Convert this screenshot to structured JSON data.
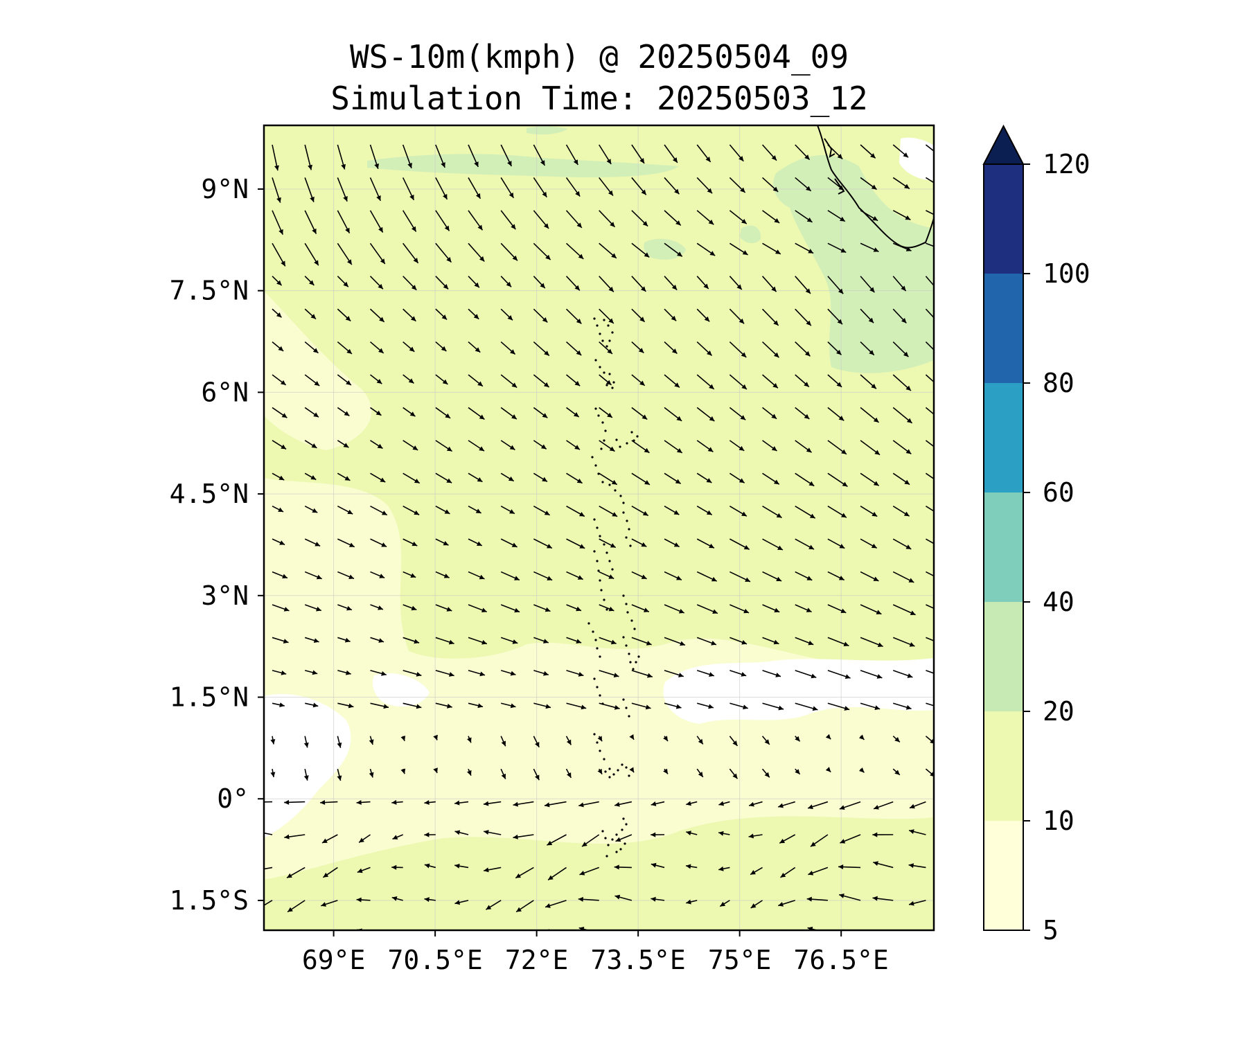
{
  "title": {
    "line1": "WS-10m(kmph) @ 20250504_09",
    "line2": "Simulation Time: 20250503_12"
  },
  "map": {
    "lon_range": [
      67.97,
      77.87
    ],
    "lat_range": [
      -1.94,
      9.94
    ],
    "lon_ticks": [
      {
        "value": 69,
        "label": "69°E"
      },
      {
        "value": 70.5,
        "label": "70.5°E"
      },
      {
        "value": 72,
        "label": "72°E"
      },
      {
        "value": 73.5,
        "label": "73.5°E"
      },
      {
        "value": 75,
        "label": "75°E"
      },
      {
        "value": 76.5,
        "label": "76.5°E"
      }
    ],
    "lat_ticks": [
      {
        "value": 9,
        "label": "9°N"
      },
      {
        "value": 7.5,
        "label": "7.5°N"
      },
      {
        "value": 6,
        "label": "6°N"
      },
      {
        "value": 4.5,
        "label": "4.5°N"
      },
      {
        "value": 3,
        "label": "3°N"
      },
      {
        "value": 1.5,
        "label": "1.5°N"
      },
      {
        "value": 0,
        "label": "0°"
      },
      {
        "value": -1.5,
        "label": "1.5°S"
      }
    ],
    "gridlines": true
  },
  "colorbar": {
    "levels": [
      5,
      10,
      20,
      40,
      60,
      80,
      100,
      120
    ],
    "labels": [
      "5",
      "10",
      "20",
      "40",
      "60",
      "80",
      "100",
      "120"
    ],
    "colors": [
      "#ffffd9",
      "#edf8b1",
      "#c7e9b4",
      "#7fcdbb",
      "#2c9fc4",
      "#2166ac",
      "#1e2f80"
    ],
    "extend_color": "#0c1f52",
    "extend": "max"
  },
  "colors": {
    "background_speed": "#edf8b1",
    "calm_speed": "#ffffff",
    "light_speed": "#fafdd0",
    "moderate_speed": "#d3efb8",
    "arrow": "#000000"
  }
}
